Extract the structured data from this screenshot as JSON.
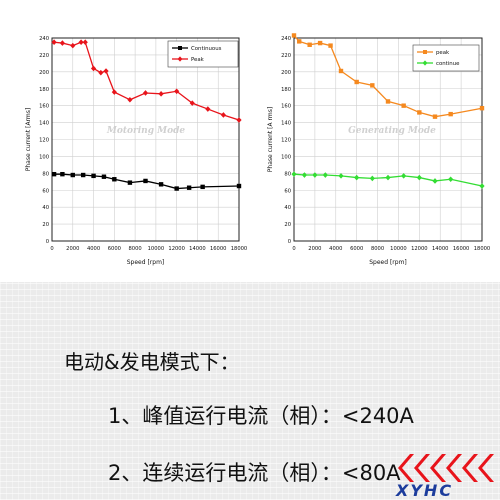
{
  "chart_data": [
    {
      "type": "line",
      "watermark": "Motoring Mode",
      "xlabel": "Speed [rpm]",
      "ylabel": "Phase current [Arms]",
      "xlim": [
        0,
        18000
      ],
      "ylim": [
        0,
        240
      ],
      "xticks": [
        0,
        2000,
        4000,
        6000,
        8000,
        10000,
        12000,
        14000,
        16000,
        18000
      ],
      "yticks": [
        0,
        20,
        40,
        60,
        80,
        100,
        120,
        140,
        160,
        180,
        200,
        220,
        240
      ],
      "grid": true,
      "legend_position": "top-right",
      "series": [
        {
          "name": "Continuous",
          "color": "#000000",
          "marker": "square",
          "x": [
            200,
            1000,
            2000,
            3000,
            4000,
            5000,
            6000,
            7500,
            9000,
            10500,
            12000,
            13200,
            14500,
            18000
          ],
          "y": [
            79,
            79,
            78,
            78,
            77,
            76,
            73,
            69,
            71,
            67,
            62,
            63,
            64,
            65
          ]
        },
        {
          "name": "Peak",
          "color": "#e8141b",
          "marker": "diamond",
          "x": [
            200,
            1000,
            2000,
            2800,
            3200,
            4000,
            4700,
            5200,
            6000,
            7500,
            9000,
            10500,
            12000,
            13500,
            15000,
            16500,
            18000
          ],
          "y": [
            235,
            234,
            231,
            235,
            235,
            204,
            199,
            201,
            176,
            167,
            175,
            174,
            177,
            163,
            156,
            149,
            143
          ]
        }
      ]
    },
    {
      "type": "line",
      "watermark": "Generating Mode",
      "xlabel": "Speed [rpm]",
      "ylabel": "Phase current [A rms]",
      "xlim": [
        0,
        18000
      ],
      "ylim": [
        0,
        240
      ],
      "xticks": [
        0,
        2000,
        4000,
        6000,
        8000,
        10000,
        12000,
        14000,
        16000,
        18000
      ],
      "yticks": [
        0,
        20,
        40,
        60,
        80,
        100,
        120,
        140,
        160,
        180,
        200,
        220,
        240
      ],
      "grid": true,
      "legend_position": "top-right",
      "series": [
        {
          "name": "peak",
          "color": "#f5891f",
          "marker": "square",
          "x": [
            0,
            500,
            1500,
            2500,
            3500,
            4500,
            6000,
            7500,
            9000,
            10500,
            12000,
            13500,
            15000,
            18000
          ],
          "y": [
            243,
            236,
            232,
            234,
            231,
            201,
            188,
            184,
            165,
            160,
            152,
            147,
            150,
            157
          ]
        },
        {
          "name": "continue",
          "color": "#33dd33",
          "marker": "diamond",
          "x": [
            0,
            1000,
            2000,
            3000,
            4500,
            6000,
            7500,
            9000,
            10500,
            12000,
            13500,
            15000,
            18000
          ],
          "y": [
            79,
            78,
            78,
            78,
            77,
            75,
            74,
            75,
            77,
            75,
            71,
            73,
            65
          ]
        }
      ]
    }
  ],
  "captions": {
    "heading": "电动&发电模式下：",
    "line1": "1、峰值运行电流（相）：<240A",
    "line2": "2、连续运行电流（相）：<80A"
  },
  "logo": {
    "text": "XYHC",
    "color": "#1c3c9c",
    "accent": "#e8141b"
  }
}
